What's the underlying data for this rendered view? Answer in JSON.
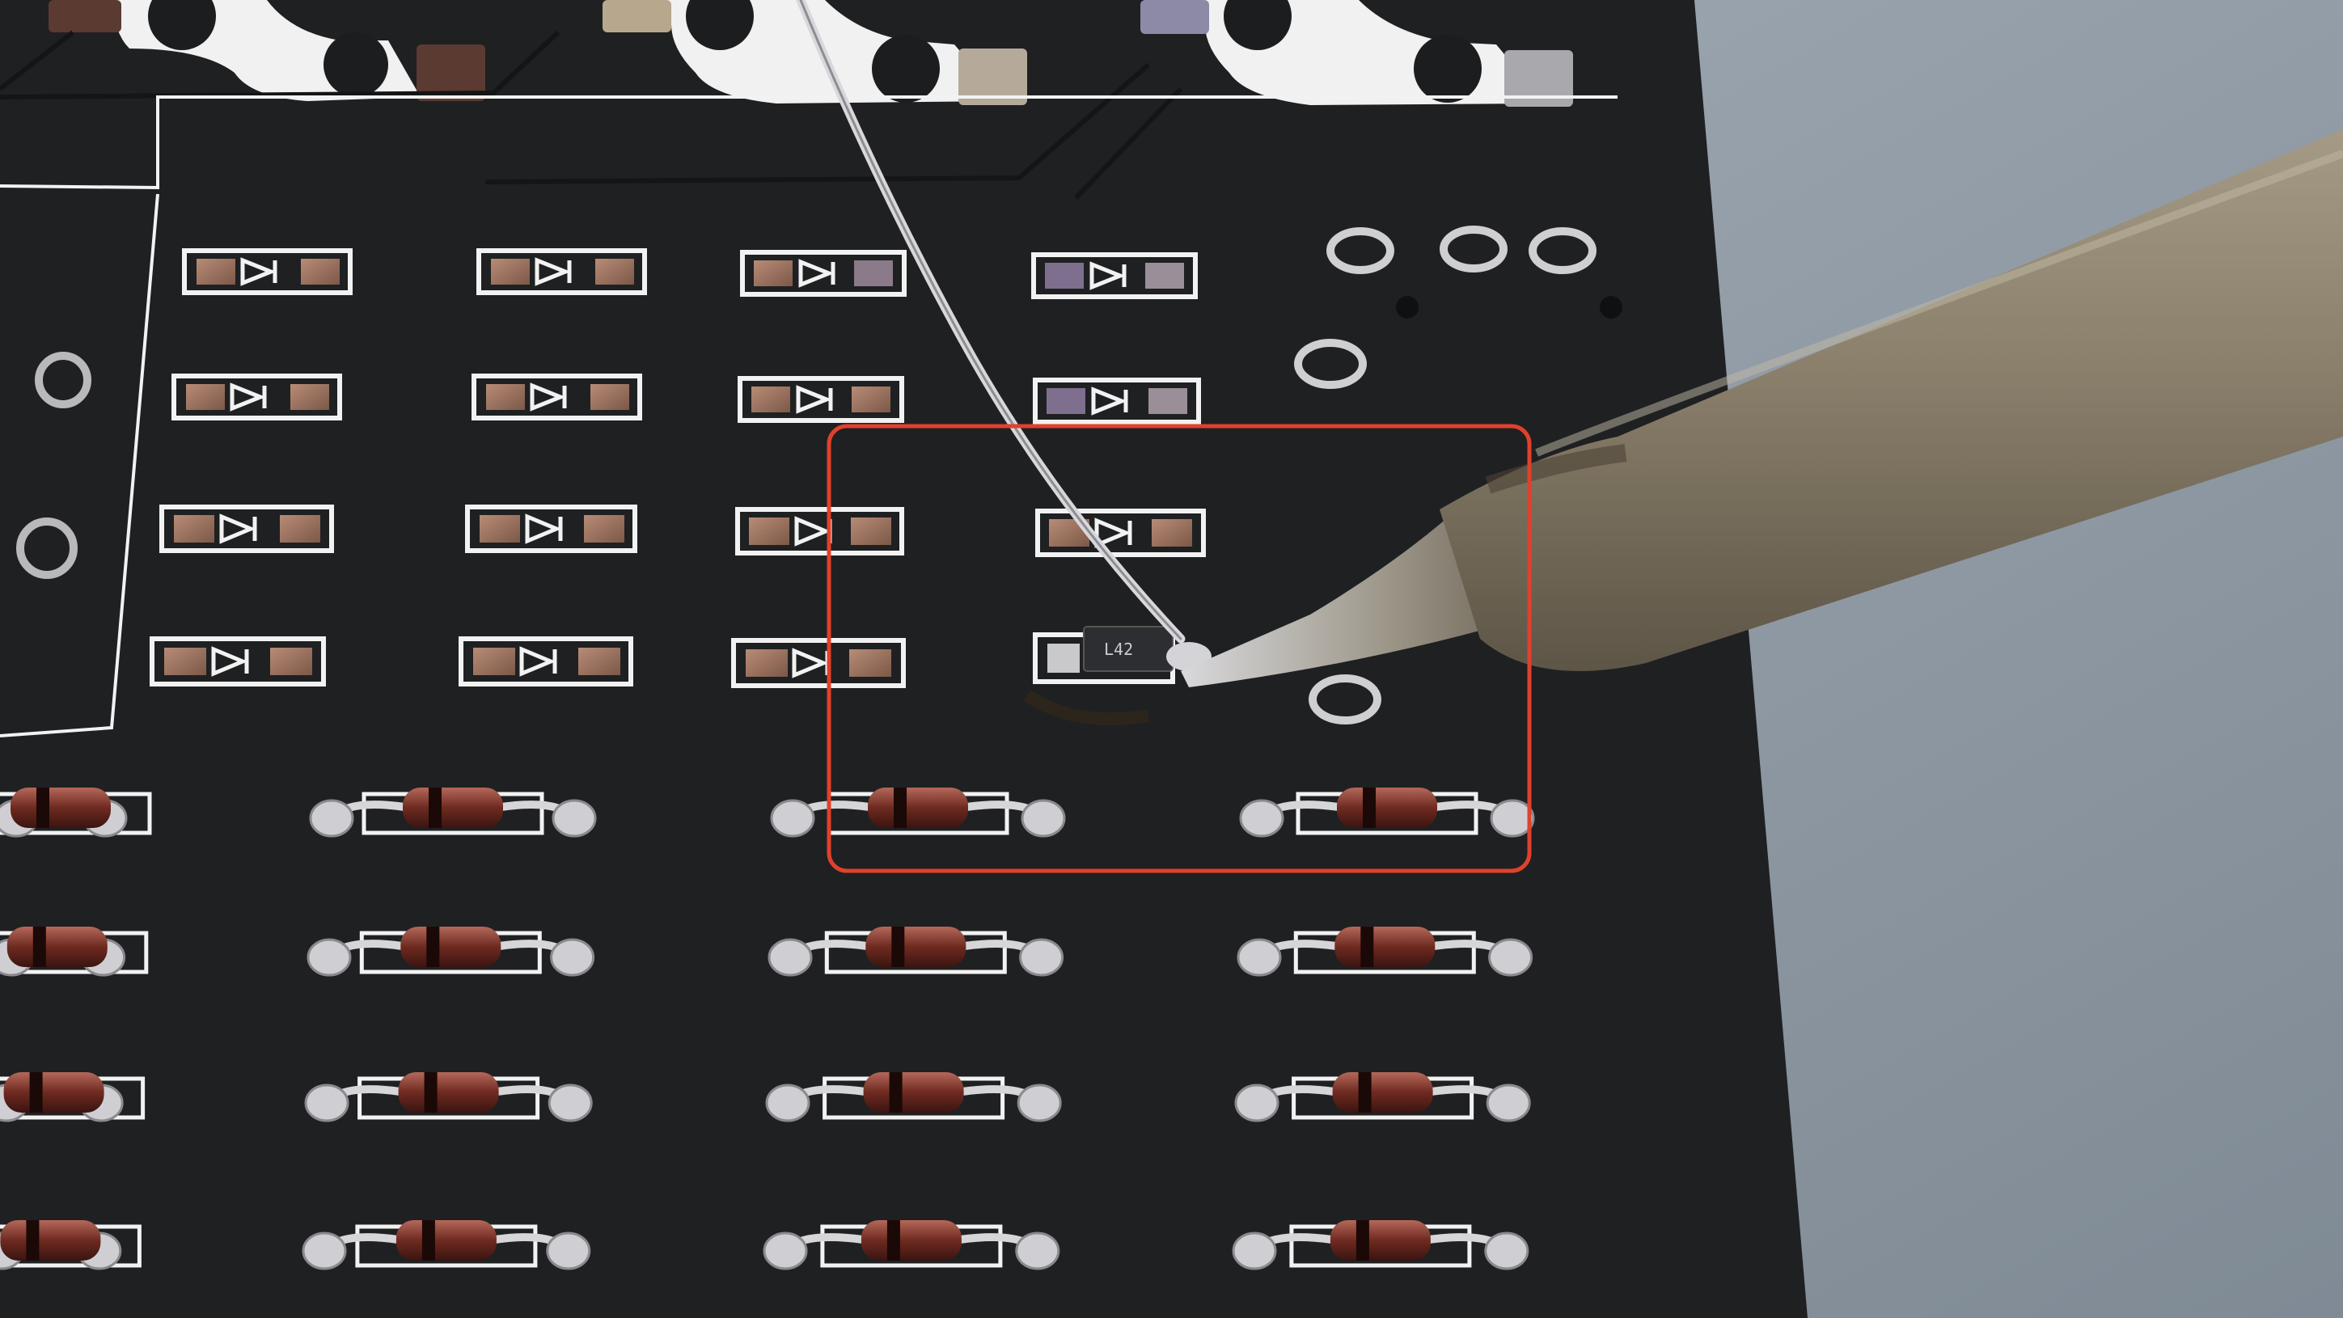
{
  "scene": {
    "smd_diode_marking": "L42",
    "colors": {
      "backdrop": "#8e98a2",
      "pcb": "#1e1f21",
      "silkscreen": "#f2f2f2",
      "pad_copper": "#a07a66",
      "highlight_box": "#e0412c",
      "solder_wire": "#d8d8dc",
      "iron_body": "#857a66",
      "diode_glass": "#7a2f24"
    }
  }
}
